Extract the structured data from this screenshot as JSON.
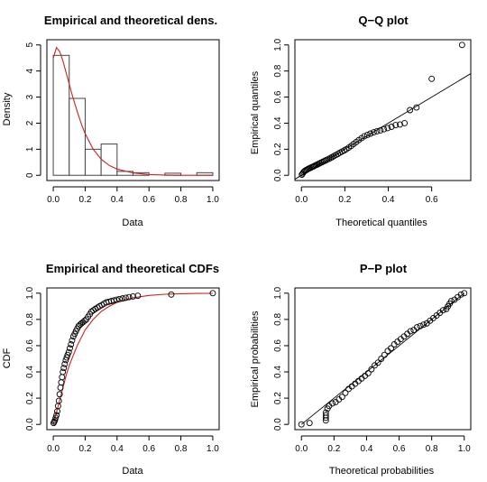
{
  "chart_data": [
    {
      "type": "bar",
      "title": "Empirical and theoretical dens.",
      "xlabel": "Data",
      "ylabel": "Density",
      "xlim": [
        0,
        1
      ],
      "ylim": [
        0,
        5
      ],
      "xticks": [
        "0.0",
        "0.2",
        "0.4",
        "0.6",
        "0.8",
        "1.0"
      ],
      "yticks": [
        "0",
        "1",
        "2",
        "3",
        "4",
        "5"
      ],
      "bins": [
        {
          "x0": 0.0,
          "x1": 0.1,
          "density": 4.6
        },
        {
          "x0": 0.1,
          "x1": 0.2,
          "density": 2.95
        },
        {
          "x0": 0.2,
          "x1": 0.3,
          "density": 1.0
        },
        {
          "x0": 0.3,
          "x1": 0.4,
          "density": 1.2
        },
        {
          "x0": 0.4,
          "x1": 0.5,
          "density": 0.15
        },
        {
          "x0": 0.5,
          "x1": 0.6,
          "density": 0.1
        },
        {
          "x0": 0.6,
          "x1": 0.7,
          "density": 0.0
        },
        {
          "x0": 0.7,
          "x1": 0.8,
          "density": 0.08
        },
        {
          "x0": 0.8,
          "x1": 0.9,
          "density": 0.0
        },
        {
          "x0": 0.9,
          "x1": 1.0,
          "density": 0.1
        }
      ],
      "curve": {
        "color": "#cc2222",
        "x": [
          0.0,
          0.02,
          0.04,
          0.06,
          0.08,
          0.1,
          0.12,
          0.15,
          0.18,
          0.2,
          0.25,
          0.3,
          0.35,
          0.4,
          0.5,
          0.6,
          0.7,
          0.8,
          0.9,
          1.0
        ],
        "y": [
          4.5,
          4.9,
          4.75,
          4.4,
          3.95,
          3.5,
          3.05,
          2.45,
          1.9,
          1.6,
          1.0,
          0.62,
          0.38,
          0.24,
          0.09,
          0.03,
          0.01,
          0.0,
          0.0,
          0.0
        ]
      }
    },
    {
      "type": "scatter",
      "title": "Q−Q plot",
      "xlabel": "Theoretical quantiles",
      "ylabel": "Empirical quantiles",
      "xlim": [
        0,
        0.75
      ],
      "ylim": [
        0,
        1
      ],
      "xticks": [
        "0.0",
        "0.2",
        "0.4",
        "0.6"
      ],
      "yticks": [
        "0.0",
        "0.2",
        "0.4",
        "0.6",
        "0.8",
        "1.0"
      ],
      "reference_line": {
        "slope": 1,
        "intercept": 0
      },
      "x": [
        0.002,
        0.006,
        0.01,
        0.015,
        0.02,
        0.025,
        0.03,
        0.035,
        0.04,
        0.045,
        0.05,
        0.055,
        0.06,
        0.066,
        0.072,
        0.078,
        0.084,
        0.09,
        0.097,
        0.104,
        0.111,
        0.118,
        0.126,
        0.134,
        0.142,
        0.15,
        0.159,
        0.168,
        0.177,
        0.187,
        0.197,
        0.207,
        0.218,
        0.229,
        0.24,
        0.252,
        0.264,
        0.277,
        0.29,
        0.304,
        0.318,
        0.333,
        0.348,
        0.364,
        0.38,
        0.397,
        0.415,
        0.434,
        0.454,
        0.475,
        0.5,
        0.53,
        0.6,
        0.74
      ],
      "y": [
        0.005,
        0.015,
        0.025,
        0.032,
        0.038,
        0.043,
        0.048,
        0.052,
        0.056,
        0.06,
        0.064,
        0.068,
        0.072,
        0.077,
        0.082,
        0.087,
        0.092,
        0.097,
        0.102,
        0.108,
        0.114,
        0.12,
        0.126,
        0.133,
        0.14,
        0.148,
        0.156,
        0.164,
        0.173,
        0.182,
        0.191,
        0.2,
        0.212,
        0.225,
        0.24,
        0.255,
        0.27,
        0.285,
        0.3,
        0.31,
        0.32,
        0.33,
        0.338,
        0.345,
        0.353,
        0.362,
        0.372,
        0.385,
        0.39,
        0.4,
        0.5,
        0.52,
        0.74,
        1.0
      ]
    },
    {
      "type": "line",
      "title": "Empirical and theoretical CDFs",
      "xlabel": "Data",
      "ylabel": "CDF",
      "xlim": [
        0,
        1
      ],
      "ylim": [
        0,
        1
      ],
      "xticks": [
        "0.0",
        "0.2",
        "0.4",
        "0.6",
        "0.8",
        "1.0"
      ],
      "yticks": [
        "0.0",
        "0.2",
        "0.4",
        "0.6",
        "0.8",
        "1.0"
      ],
      "empirical": {
        "x": [
          0.002,
          0.006,
          0.01,
          0.015,
          0.02,
          0.025,
          0.03,
          0.035,
          0.04,
          0.045,
          0.05,
          0.055,
          0.06,
          0.066,
          0.072,
          0.078,
          0.084,
          0.09,
          0.097,
          0.104,
          0.111,
          0.118,
          0.126,
          0.134,
          0.142,
          0.15,
          0.159,
          0.168,
          0.177,
          0.187,
          0.197,
          0.207,
          0.218,
          0.229,
          0.24,
          0.252,
          0.264,
          0.277,
          0.29,
          0.304,
          0.318,
          0.333,
          0.348,
          0.364,
          0.38,
          0.397,
          0.415,
          0.434,
          0.454,
          0.475,
          0.5,
          0.53,
          0.74,
          1.0
        ],
        "y": [
          0.01,
          0.02,
          0.03,
          0.05,
          0.07,
          0.1,
          0.14,
          0.18,
          0.23,
          0.28,
          0.32,
          0.36,
          0.4,
          0.43,
          0.46,
          0.49,
          0.51,
          0.53,
          0.55,
          0.58,
          0.61,
          0.64,
          0.67,
          0.69,
          0.71,
          0.73,
          0.75,
          0.76,
          0.77,
          0.78,
          0.79,
          0.8,
          0.82,
          0.84,
          0.86,
          0.87,
          0.88,
          0.89,
          0.9,
          0.91,
          0.92,
          0.93,
          0.935,
          0.94,
          0.945,
          0.95,
          0.955,
          0.96,
          0.965,
          0.97,
          0.975,
          0.98,
          0.99,
          1.0
        ]
      },
      "theoretical": {
        "color": "#cc2222",
        "x": [
          0.0,
          0.02,
          0.05,
          0.08,
          0.1,
          0.15,
          0.2,
          0.25,
          0.3,
          0.35,
          0.4,
          0.5,
          0.6,
          0.7,
          0.8,
          0.9,
          1.0
        ],
        "y": [
          0.0,
          0.09,
          0.23,
          0.37,
          0.45,
          0.6,
          0.72,
          0.8,
          0.86,
          0.9,
          0.93,
          0.965,
          0.983,
          0.992,
          0.996,
          0.998,
          0.999
        ]
      }
    },
    {
      "type": "scatter",
      "title": "P−P plot",
      "xlabel": "Theoretical probabilities",
      "ylabel": "Empirical probabilities",
      "xlim": [
        0,
        1
      ],
      "ylim": [
        0,
        1
      ],
      "xticks": [
        "0.0",
        "0.2",
        "0.4",
        "0.6",
        "0.8",
        "1.0"
      ],
      "yticks": [
        "0.0",
        "0.2",
        "0.4",
        "0.6",
        "0.8",
        "1.0"
      ],
      "reference_line": {
        "slope": 1,
        "intercept": 0
      },
      "x": [
        0.0,
        0.05,
        0.15,
        0.15,
        0.15,
        0.15,
        0.16,
        0.17,
        0.19,
        0.21,
        0.23,
        0.25,
        0.27,
        0.29,
        0.31,
        0.33,
        0.35,
        0.37,
        0.39,
        0.41,
        0.43,
        0.45,
        0.47,
        0.49,
        0.51,
        0.53,
        0.55,
        0.57,
        0.59,
        0.61,
        0.63,
        0.65,
        0.67,
        0.69,
        0.71,
        0.73,
        0.75,
        0.77,
        0.79,
        0.81,
        0.83,
        0.85,
        0.87,
        0.89,
        0.9,
        0.91,
        0.92,
        0.94,
        0.96,
        0.98,
        1.0
      ],
      "y": [
        0.0,
        0.01,
        0.03,
        0.05,
        0.07,
        0.09,
        0.12,
        0.14,
        0.16,
        0.17,
        0.19,
        0.21,
        0.24,
        0.27,
        0.29,
        0.31,
        0.33,
        0.35,
        0.37,
        0.39,
        0.42,
        0.45,
        0.47,
        0.5,
        0.53,
        0.56,
        0.58,
        0.61,
        0.63,
        0.65,
        0.67,
        0.69,
        0.71,
        0.72,
        0.74,
        0.75,
        0.76,
        0.77,
        0.79,
        0.81,
        0.83,
        0.85,
        0.87,
        0.88,
        0.9,
        0.92,
        0.94,
        0.95,
        0.97,
        0.99,
        1.0
      ]
    }
  ]
}
